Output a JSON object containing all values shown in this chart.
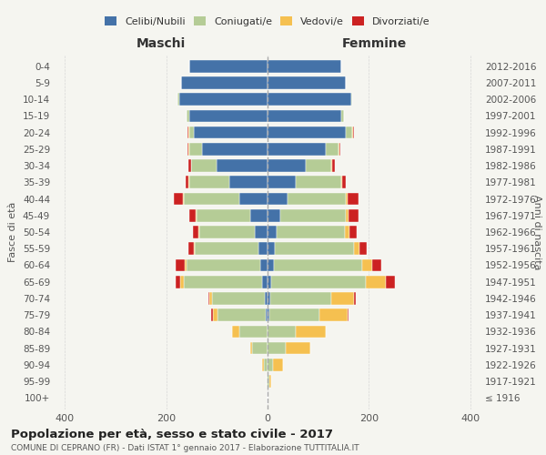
{
  "age_groups": [
    "100+",
    "95-99",
    "90-94",
    "85-89",
    "80-84",
    "75-79",
    "70-74",
    "65-69",
    "60-64",
    "55-59",
    "50-54",
    "45-49",
    "40-44",
    "35-39",
    "30-34",
    "25-29",
    "20-24",
    "15-19",
    "10-14",
    "5-9",
    "0-4"
  ],
  "birth_years": [
    "≤ 1916",
    "1917-1921",
    "1922-1926",
    "1927-1931",
    "1932-1936",
    "1937-1941",
    "1942-1946",
    "1947-1951",
    "1952-1956",
    "1957-1961",
    "1962-1966",
    "1967-1971",
    "1972-1976",
    "1977-1981",
    "1982-1986",
    "1987-1991",
    "1992-1996",
    "1997-2001",
    "2002-2006",
    "2007-2011",
    "2012-2016"
  ],
  "males": {
    "celibe": [
      0,
      0,
      0,
      0,
      0,
      4,
      5,
      10,
      15,
      18,
      25,
      35,
      55,
      75,
      100,
      130,
      145,
      155,
      175,
      170,
      155
    ],
    "coniugato": [
      0,
      2,
      8,
      30,
      55,
      95,
      105,
      155,
      145,
      125,
      110,
      105,
      110,
      80,
      50,
      25,
      10,
      5,
      2,
      0,
      0
    ],
    "vedovo": [
      0,
      0,
      2,
      5,
      15,
      8,
      5,
      8,
      3,
      3,
      2,
      2,
      2,
      1,
      1,
      1,
      1,
      0,
      0,
      0,
      0
    ],
    "divorziato": [
      0,
      0,
      0,
      0,
      0,
      4,
      2,
      8,
      18,
      10,
      10,
      12,
      18,
      6,
      5,
      2,
      2,
      0,
      0,
      0,
      0
    ]
  },
  "females": {
    "nubile": [
      0,
      0,
      0,
      0,
      0,
      3,
      5,
      8,
      12,
      15,
      18,
      25,
      40,
      55,
      75,
      115,
      155,
      145,
      165,
      155,
      145
    ],
    "coniugata": [
      0,
      3,
      10,
      35,
      55,
      100,
      120,
      185,
      175,
      155,
      135,
      130,
      115,
      90,
      50,
      25,
      12,
      5,
      2,
      0,
      0
    ],
    "vedova": [
      0,
      4,
      20,
      50,
      60,
      55,
      45,
      40,
      20,
      12,
      8,
      5,
      3,
      2,
      2,
      1,
      1,
      0,
      0,
      0,
      0
    ],
    "divorziata": [
      0,
      0,
      0,
      0,
      0,
      2,
      4,
      18,
      18,
      14,
      14,
      20,
      22,
      8,
      5,
      3,
      2,
      0,
      0,
      0,
      0
    ]
  },
  "colors": {
    "celibe_nubile": "#4472a8",
    "coniugato_a": "#b5cc96",
    "vedovo_a": "#f5c050",
    "divorziato_a": "#cc2222"
  },
  "xlabel_left": "Maschi",
  "xlabel_right": "Femmine",
  "ylabel_left": "Fasce di età",
  "ylabel_right": "Anni di nascita",
  "title": "Popolazione per età, sesso e stato civile - 2017",
  "subtitle": "COMUNE DI CEPRANO (FR) - Dati ISTAT 1° gennaio 2017 - Elaborazione TUTTITALIA.IT",
  "xlim": 420,
  "legend_labels": [
    "Celibi/Nubili",
    "Coniugati/e",
    "Vedovi/e",
    "Divorziati/e"
  ],
  "bg_color": "#f5f5f0"
}
